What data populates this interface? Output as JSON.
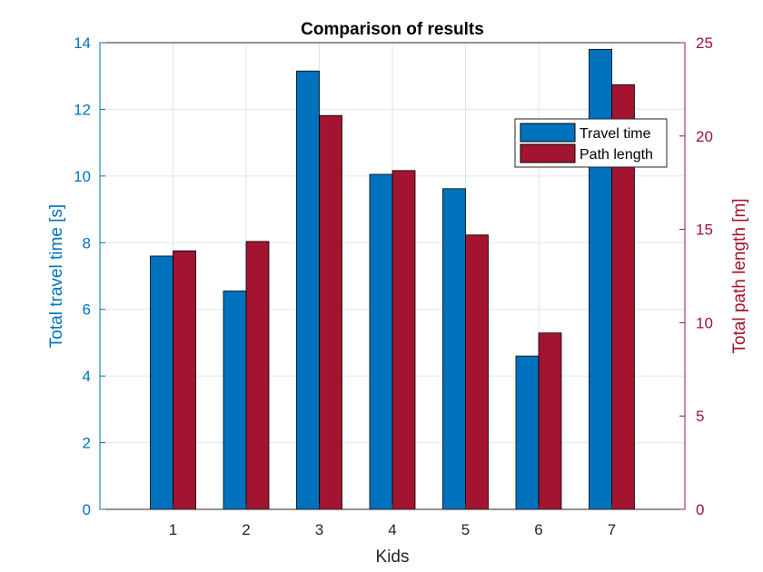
{
  "chart_data": {
    "type": "bar",
    "title": "Comparison of results",
    "xlabel": "Kids",
    "categories": [
      "1",
      "2",
      "3",
      "4",
      "5",
      "6",
      "7"
    ],
    "y_left": {
      "label": "Total travel time [s]",
      "lim": [
        0,
        14
      ],
      "ticks": [
        0,
        2,
        4,
        6,
        8,
        10,
        12,
        14
      ],
      "color": "#0072BD"
    },
    "y_right": {
      "label": "Total path length [m]",
      "lim": [
        0,
        25
      ],
      "ticks": [
        0,
        5,
        10,
        15,
        20,
        25
      ],
      "color": "#A2142F"
    },
    "series": [
      {
        "name": "Travel time",
        "axis": "left",
        "color": "#0072BD",
        "values": [
          7.6,
          6.55,
          13.15,
          10.05,
          9.62,
          4.6,
          13.8
        ]
      },
      {
        "name": "Path length",
        "axis": "right",
        "color": "#A2142F",
        "values": [
          13.85,
          14.35,
          21.1,
          18.15,
          14.7,
          9.45,
          22.75
        ]
      }
    ],
    "grid": true,
    "legend_position": "top-right"
  }
}
